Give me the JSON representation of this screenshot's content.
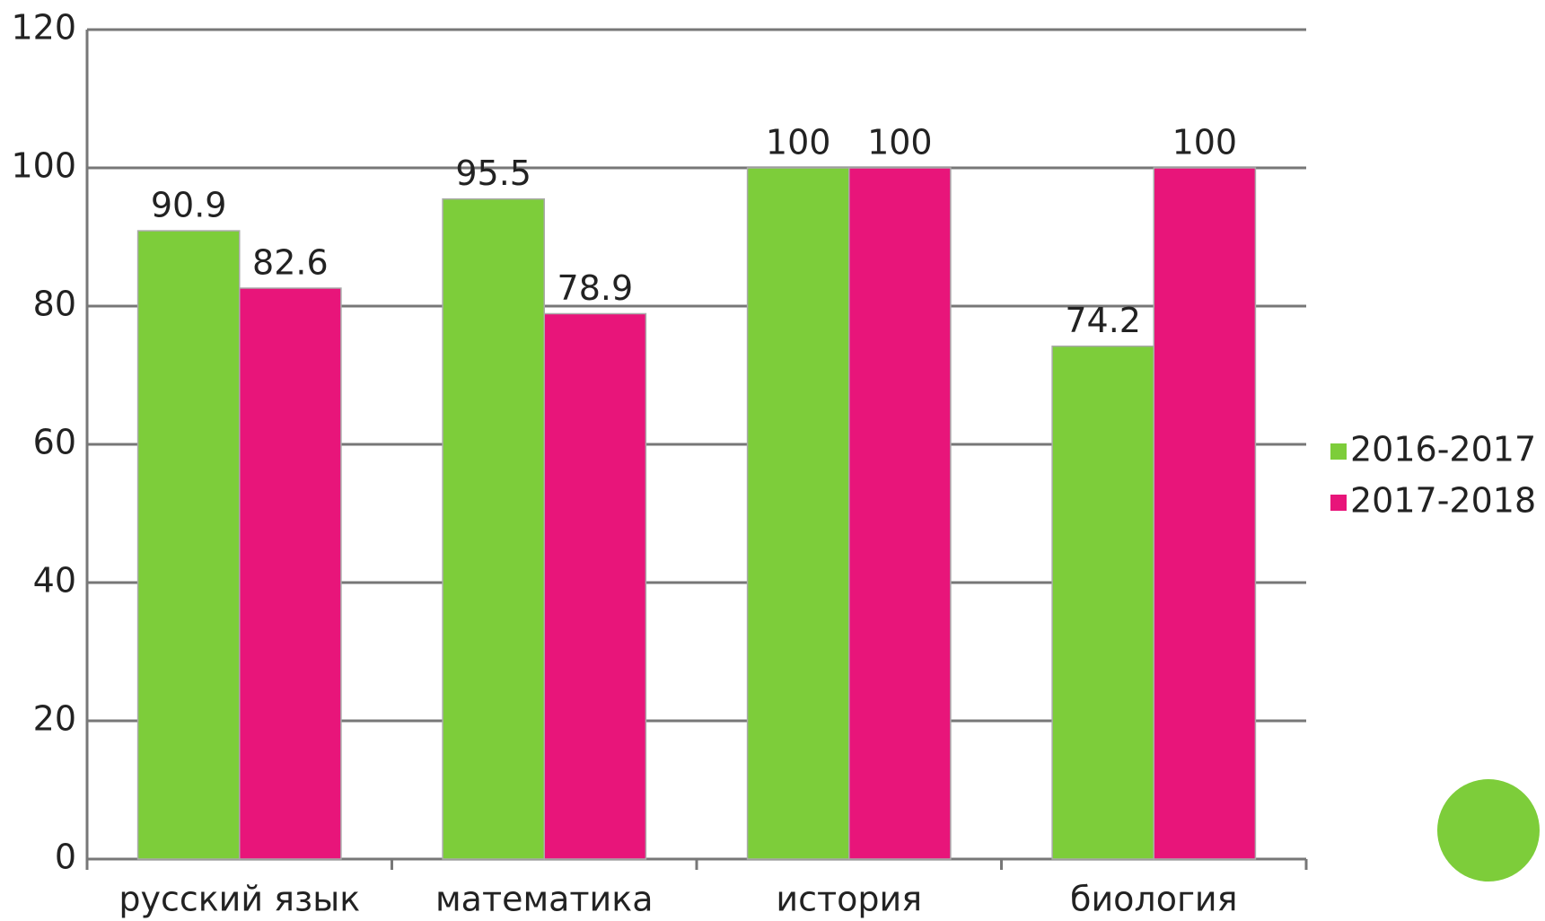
{
  "chart_data": {
    "type": "bar",
    "categories": [
      "русский язык",
      "математика",
      "история",
      "биология"
    ],
    "series": [
      {
        "name": "2016-2017",
        "color": "#7dcd3a",
        "values": [
          90.9,
          95.5,
          100,
          74.2
        ]
      },
      {
        "name": "2017-2018",
        "color": "#e8157a",
        "values": [
          82.6,
          78.9,
          100,
          100
        ]
      }
    ],
    "ylim": [
      0,
      120
    ],
    "yticks": [
      0,
      20,
      40,
      60,
      80,
      100,
      120
    ],
    "grid": true,
    "legend": "right"
  }
}
